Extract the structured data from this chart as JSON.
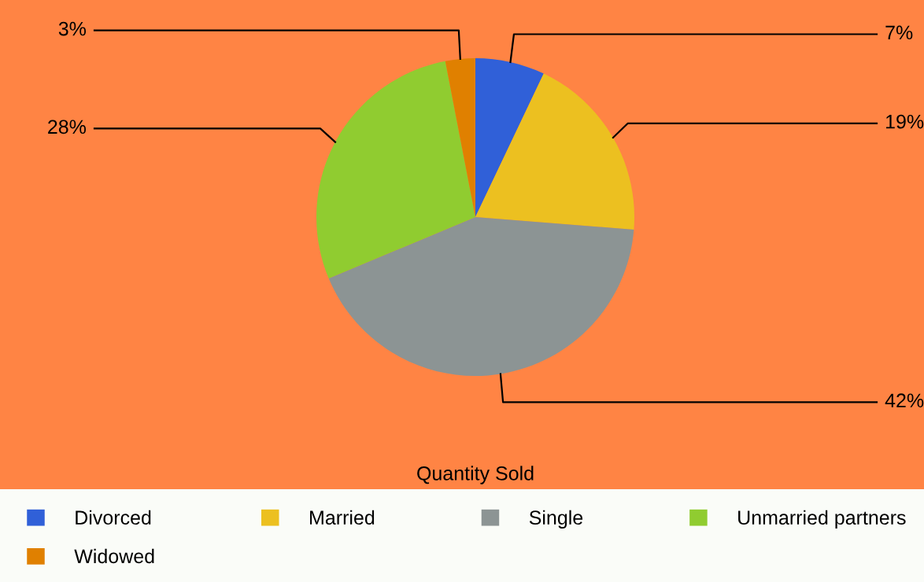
{
  "chart_data": {
    "type": "pie",
    "title": "Quantity Sold",
    "categories": [
      "Divorced",
      "Married",
      "Single",
      "Unmarried partners",
      "Widowed"
    ],
    "values": [
      7,
      19,
      42,
      28,
      3
    ],
    "colors": [
      "#3060d8",
      "#ecc020",
      "#8c9494",
      "#90cc30",
      "#e08000"
    ],
    "value_labels": [
      "7%",
      "19%",
      "42%",
      "28%",
      "3%"
    ],
    "legend": "bottom"
  }
}
